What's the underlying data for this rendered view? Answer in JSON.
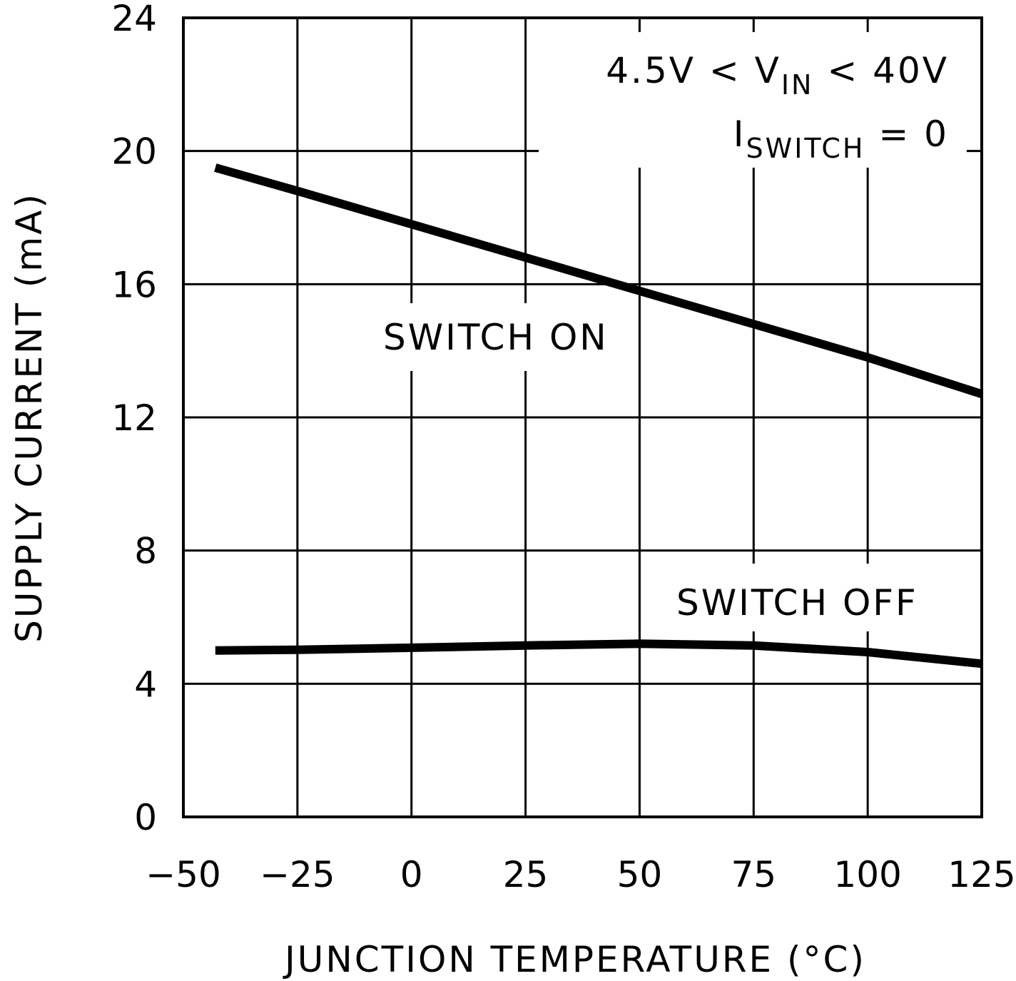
{
  "chart_data": {
    "type": "line",
    "title": "",
    "xlabel": "JUNCTION TEMPERATURE (°C)",
    "ylabel": "SUPPLY CURRENT (mA)",
    "xlim": [
      -50,
      125
    ],
    "ylim": [
      0,
      24
    ],
    "xticks": [
      -50,
      -25,
      0,
      25,
      50,
      75,
      100,
      125
    ],
    "yticks": [
      0,
      4,
      8,
      12,
      16,
      20,
      24
    ],
    "xtick_labels": [
      "−50",
      "−25",
      "0",
      "25",
      "50",
      "75",
      "100",
      "125"
    ],
    "ytick_labels": [
      "0",
      "4",
      "8",
      "12",
      "16",
      "20",
      "24"
    ],
    "grid": true,
    "series": [
      {
        "name": "SWITCH ON",
        "x": [
          -43,
          -25,
          0,
          25,
          50,
          75,
          100,
          125
        ],
        "y": [
          19.5,
          18.8,
          17.8,
          16.8,
          15.8,
          14.8,
          13.8,
          12.7
        ]
      },
      {
        "name": "SWITCH OFF",
        "x": [
          -43,
          -25,
          0,
          25,
          50,
          75,
          100,
          125
        ],
        "y": [
          5.0,
          5.02,
          5.08,
          5.15,
          5.2,
          5.15,
          4.95,
          4.6
        ]
      }
    ],
    "annotations": {
      "condition_line1_prefix": "4.5V < V",
      "condition_line1_sub": "IN",
      "condition_line1_suffix": " < 40V",
      "condition_line2_prefix": "I",
      "condition_line2_sub": "SWITCH",
      "condition_line2_suffix": " = 0"
    }
  },
  "colors": {
    "line": "#000000",
    "grid": "#000000",
    "background": "#ffffff"
  }
}
